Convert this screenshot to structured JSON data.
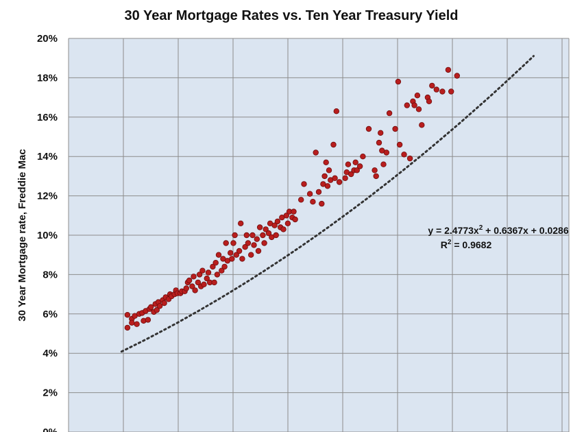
{
  "chart_data": {
    "type": "scatter",
    "title": "30 Year Mortgage Rates vs. Ten Year Treasury Yield",
    "xlabel": "",
    "ylabel": "30 Year Mortgage rate, Freddie Mac",
    "ylim": [
      0,
      0.2
    ],
    "xlim": [
      0,
      0.17
    ],
    "yticks": [
      "0%",
      "2%",
      "4%",
      "6%",
      "8%",
      "10%",
      "12%",
      "14%",
      "16%",
      "18%",
      "20%"
    ],
    "grid": true,
    "trendline": {
      "type": "polynomial",
      "coefficients": {
        "a": 2.4773,
        "b": 0.6367,
        "c": 0.0286
      },
      "equation_text": "y = 2.4773x",
      "equation_sup": "2",
      "equation_rest": " + 0.6367x + 0.0286",
      "r2_label": "R",
      "r2_sup": "2",
      "r2_rest": " = 0.9682",
      "x_range": [
        0.018,
        0.158
      ]
    },
    "colors": {
      "plot_bg": "#dbe5f1",
      "grid": "#8c8c8c",
      "marker": "#b81e1e",
      "marker_dark": "#6e0c0c",
      "trendline": "#333333"
    },
    "points": [
      [
        0.02,
        0.053
      ],
      [
        0.02,
        0.0595
      ],
      [
        0.0215,
        0.0575
      ],
      [
        0.0215,
        0.0555
      ],
      [
        0.0225,
        0.059
      ],
      [
        0.0232,
        0.0548
      ],
      [
        0.024,
        0.06
      ],
      [
        0.025,
        0.0605
      ],
      [
        0.0255,
        0.0565
      ],
      [
        0.0262,
        0.0615
      ],
      [
        0.027,
        0.057
      ],
      [
        0.0275,
        0.0625
      ],
      [
        0.028,
        0.0635
      ],
      [
        0.029,
        0.061
      ],
      [
        0.0295,
        0.065
      ],
      [
        0.03,
        0.062
      ],
      [
        0.0305,
        0.066
      ],
      [
        0.031,
        0.064
      ],
      [
        0.032,
        0.067
      ],
      [
        0.0325,
        0.0655
      ],
      [
        0.033,
        0.0685
      ],
      [
        0.034,
        0.0675
      ],
      [
        0.0345,
        0.07
      ],
      [
        0.035,
        0.069
      ],
      [
        0.036,
        0.07
      ],
      [
        0.0365,
        0.072
      ],
      [
        0.037,
        0.0705
      ],
      [
        0.038,
        0.0705
      ],
      [
        0.0385,
        0.0715
      ],
      [
        0.0395,
        0.0715
      ],
      [
        0.04,
        0.073
      ],
      [
        0.0405,
        0.076
      ],
      [
        0.041,
        0.077
      ],
      [
        0.042,
        0.074
      ],
      [
        0.0425,
        0.079
      ],
      [
        0.043,
        0.072
      ],
      [
        0.044,
        0.076
      ],
      [
        0.0445,
        0.08
      ],
      [
        0.045,
        0.074
      ],
      [
        0.0455,
        0.082
      ],
      [
        0.046,
        0.075
      ],
      [
        0.047,
        0.078
      ],
      [
        0.0475,
        0.081
      ],
      [
        0.048,
        0.076
      ],
      [
        0.049,
        0.084
      ],
      [
        0.0495,
        0.076
      ],
      [
        0.05,
        0.086
      ],
      [
        0.0505,
        0.08
      ],
      [
        0.051,
        0.09
      ],
      [
        0.052,
        0.082
      ],
      [
        0.0525,
        0.088
      ],
      [
        0.053,
        0.084
      ],
      [
        0.0535,
        0.096
      ],
      [
        0.054,
        0.087
      ],
      [
        0.055,
        0.091
      ],
      [
        0.0555,
        0.088
      ],
      [
        0.056,
        0.096
      ],
      [
        0.0565,
        0.1
      ],
      [
        0.057,
        0.09
      ],
      [
        0.058,
        0.092
      ],
      [
        0.0585,
        0.106
      ],
      [
        0.059,
        0.088
      ],
      [
        0.06,
        0.094
      ],
      [
        0.0605,
        0.1
      ],
      [
        0.061,
        0.096
      ],
      [
        0.062,
        0.09
      ],
      [
        0.0625,
        0.1
      ],
      [
        0.063,
        0.095
      ],
      [
        0.064,
        0.098
      ],
      [
        0.0645,
        0.092
      ],
      [
        0.065,
        0.104
      ],
      [
        0.066,
        0.1
      ],
      [
        0.0665,
        0.096
      ],
      [
        0.067,
        0.103
      ],
      [
        0.068,
        0.101
      ],
      [
        0.0685,
        0.106
      ],
      [
        0.069,
        0.099
      ],
      [
        0.07,
        0.105
      ],
      [
        0.0705,
        0.1
      ],
      [
        0.071,
        0.107
      ],
      [
        0.072,
        0.104
      ],
      [
        0.0725,
        0.109
      ],
      [
        0.073,
        0.103
      ],
      [
        0.074,
        0.11
      ],
      [
        0.0745,
        0.106
      ],
      [
        0.075,
        0.112
      ],
      [
        0.076,
        0.109
      ],
      [
        0.0765,
        0.112
      ],
      [
        0.077,
        0.108
      ],
      [
        0.079,
        0.118
      ],
      [
        0.08,
        0.126
      ],
      [
        0.082,
        0.121
      ],
      [
        0.083,
        0.117
      ],
      [
        0.084,
        0.142
      ],
      [
        0.085,
        0.122
      ],
      [
        0.086,
        0.116
      ],
      [
        0.0865,
        0.126
      ],
      [
        0.087,
        0.13
      ],
      [
        0.0875,
        0.137
      ],
      [
        0.088,
        0.125
      ],
      [
        0.0885,
        0.133
      ],
      [
        0.089,
        0.128
      ],
      [
        0.09,
        0.146
      ],
      [
        0.0905,
        0.129
      ],
      [
        0.091,
        0.163
      ],
      [
        0.092,
        0.127
      ],
      [
        0.094,
        0.129
      ],
      [
        0.0945,
        0.132
      ],
      [
        0.095,
        0.136
      ],
      [
        0.096,
        0.131
      ],
      [
        0.097,
        0.133
      ],
      [
        0.0975,
        0.137
      ],
      [
        0.098,
        0.133
      ],
      [
        0.099,
        0.135
      ],
      [
        0.1,
        0.14
      ],
      [
        0.102,
        0.154
      ],
      [
        0.104,
        0.133
      ],
      [
        0.1045,
        0.13
      ],
      [
        0.1055,
        0.147
      ],
      [
        0.106,
        0.152
      ],
      [
        0.1065,
        0.143
      ],
      [
        0.107,
        0.136
      ],
      [
        0.108,
        0.142
      ],
      [
        0.109,
        0.162
      ],
      [
        0.111,
        0.154
      ],
      [
        0.112,
        0.178
      ],
      [
        0.1125,
        0.146
      ],
      [
        0.114,
        0.141
      ],
      [
        0.115,
        0.166
      ],
      [
        0.116,
        0.139
      ],
      [
        0.117,
        0.168
      ],
      [
        0.1175,
        0.166
      ],
      [
        0.1185,
        0.171
      ],
      [
        0.119,
        0.164
      ],
      [
        0.12,
        0.156
      ],
      [
        0.122,
        0.17
      ],
      [
        0.1225,
        0.168
      ],
      [
        0.1235,
        0.176
      ],
      [
        0.125,
        0.174
      ],
      [
        0.127,
        0.173
      ],
      [
        0.129,
        0.184
      ],
      [
        0.13,
        0.173
      ],
      [
        0.132,
        0.181
      ]
    ]
  }
}
